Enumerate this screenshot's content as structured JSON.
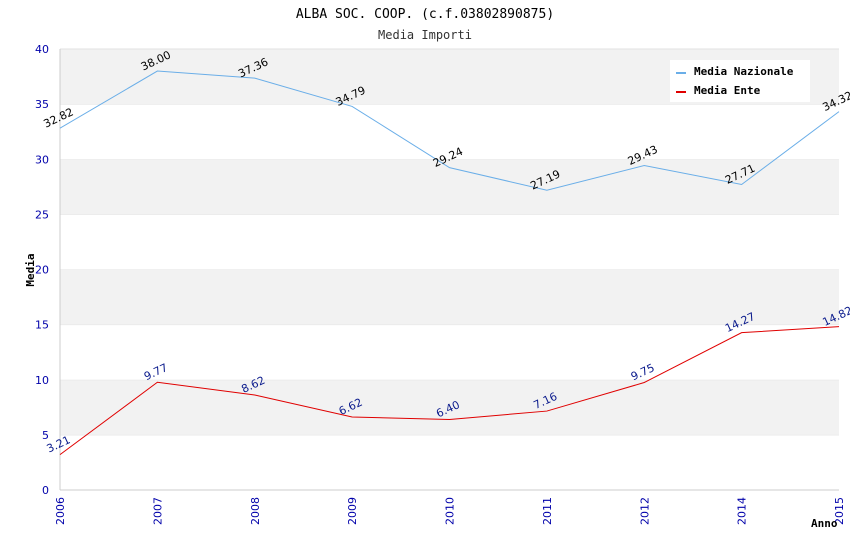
{
  "chart_data": {
    "type": "line",
    "title": "ALBA SOC. COOP. (c.f.03802890875)",
    "subtitle": "Media Importi",
    "xlabel": "Anno",
    "ylabel": "Media",
    "categories": [
      "2006",
      "2007",
      "2008",
      "2009",
      "2010",
      "2011",
      "2012",
      "2014",
      "2015"
    ],
    "ylim": [
      0,
      40
    ],
    "yticks": [
      "0",
      "5",
      "10",
      "15",
      "20",
      "25",
      "30",
      "35",
      "40"
    ],
    "grid": "horizontal bands",
    "legend_position": "top-right",
    "series": [
      {
        "name": "Media Nazionale",
        "color": "#6aaee8",
        "label_color": "#000000",
        "values": [
          32.82,
          38.0,
          37.36,
          34.79,
          29.24,
          27.19,
          29.43,
          27.71,
          34.32
        ],
        "labels": [
          "32.82",
          "38.00",
          "37.36",
          "34.79",
          "29.24",
          "27.19",
          "29.43",
          "27.71",
          "34.32"
        ]
      },
      {
        "name": "Media Ente",
        "color": "#e00000",
        "label_color": "#0a1a8c",
        "values": [
          3.21,
          9.77,
          8.62,
          6.62,
          6.4,
          7.16,
          9.75,
          14.27,
          14.82
        ],
        "labels": [
          "3.21",
          "9.77",
          "8.62",
          "6.62",
          "6.40",
          "7.16",
          "9.75",
          "14.27",
          "14.82"
        ]
      }
    ]
  }
}
